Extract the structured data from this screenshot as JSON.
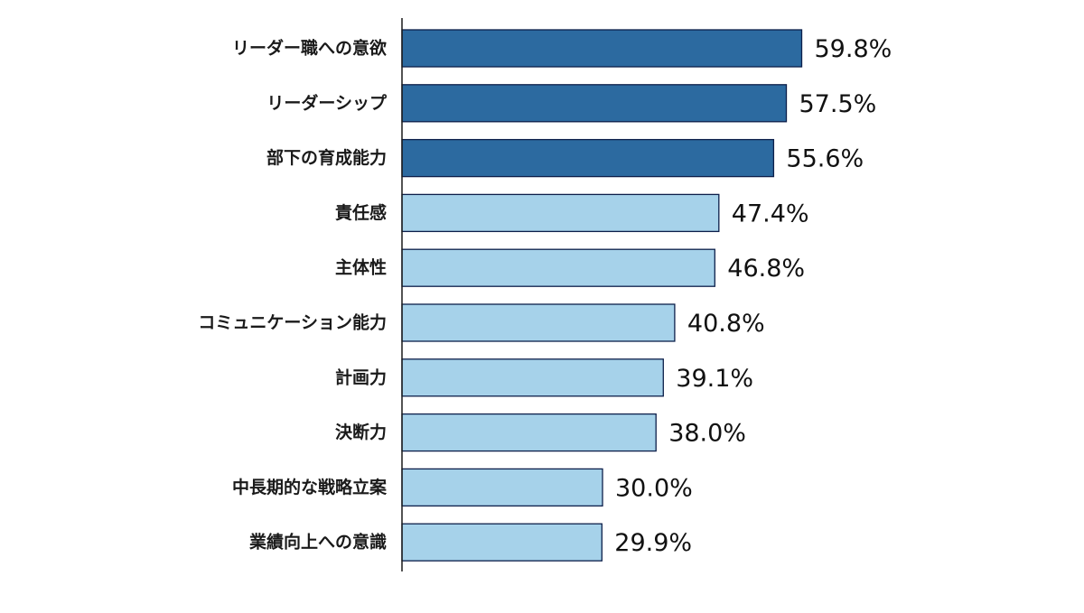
{
  "chart_data": {
    "type": "bar",
    "orientation": "horizontal",
    "categories": [
      "リーダー職への意欲",
      "リーダーシップ",
      "部下の育成能力",
      "責任感",
      "主体性",
      "コミュニケーション能力",
      "計画力",
      "決断力",
      "中長期的な戦略立案",
      "業績向上への意識"
    ],
    "values": [
      59.8,
      57.5,
      55.6,
      47.4,
      46.8,
      40.8,
      39.1,
      38.0,
      30.0,
      29.9
    ],
    "value_labels": [
      "59.8%",
      "57.5%",
      "55.6%",
      "47.4%",
      "46.8%",
      "40.8%",
      "39.1%",
      "38.0%",
      "30.0%",
      "29.9%"
    ],
    "highlighted": [
      true,
      true,
      true,
      false,
      false,
      false,
      false,
      false,
      false,
      false
    ],
    "unit": "%",
    "xlim": [
      0,
      100
    ],
    "grid": false,
    "title": "",
    "xlabel": "",
    "ylabel": "",
    "colors": {
      "highlight": "#2c6aa0",
      "normal": "#a6d2ea",
      "bar_border": "#0d1f4a",
      "axis": "#1a1a1a"
    }
  }
}
